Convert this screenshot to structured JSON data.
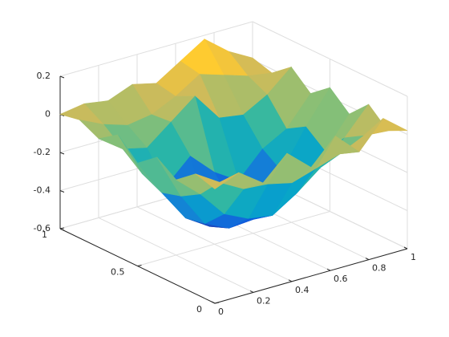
{
  "chart_data": {
    "type": "surface",
    "x": [
      0,
      0.125,
      0.25,
      0.375,
      0.5,
      0.625,
      0.75,
      0.875,
      1
    ],
    "y": [
      0,
      0.125,
      0.25,
      0.375,
      0.5,
      0.625,
      0.75,
      0.875,
      1
    ],
    "z": [
      [
        0,
        0.05,
        -0.04,
        0.08,
        -0.03,
        0.1,
        -0.02,
        0.12,
        0.02
      ],
      [
        0.03,
        -0.05,
        -0.12,
        -0.13,
        -0.16,
        -0.12,
        -0.08,
        -0.02,
        -0.03
      ],
      [
        -0.05,
        -0.16,
        -0.3,
        -0.36,
        -0.38,
        -0.3,
        -0.2,
        -0.08,
        0.06
      ],
      [
        0.02,
        -0.22,
        -0.4,
        -0.46,
        -0.45,
        -0.38,
        -0.3,
        -0.2,
        -0.04
      ],
      [
        -0.06,
        -0.25,
        -0.42,
        -0.5,
        -0.44,
        -0.4,
        -0.32,
        -0.12,
        0.05
      ],
      [
        0.04,
        -0.2,
        -0.3,
        -0.18,
        -0.3,
        -0.38,
        -0.25,
        -0.18,
        -0.03
      ],
      [
        -0.03,
        -0.12,
        -0.15,
        -0.05,
        0.05,
        -0.1,
        -0.12,
        -0.05,
        0.06
      ],
      [
        0.02,
        -0.04,
        -0.08,
        -0.06,
        0.0,
        0.08,
        0.04,
        0.0,
        -0.02
      ],
      [
        0,
        0.02,
        0.0,
        0.05,
        0.02,
        0.1,
        0.18,
        0.08,
        0.01
      ]
    ],
    "xlim": [
      0,
      1
    ],
    "ylim": [
      0,
      1
    ],
    "zlim": [
      -0.6,
      0.2
    ],
    "xticks": [
      0,
      0.2,
      0.4,
      0.6,
      0.8,
      1
    ],
    "yticks": [
      0,
      0.5,
      1
    ],
    "zticks": [
      -0.6,
      -0.4,
      -0.2,
      0,
      0.2
    ],
    "grid": true,
    "colormap": "parula"
  }
}
